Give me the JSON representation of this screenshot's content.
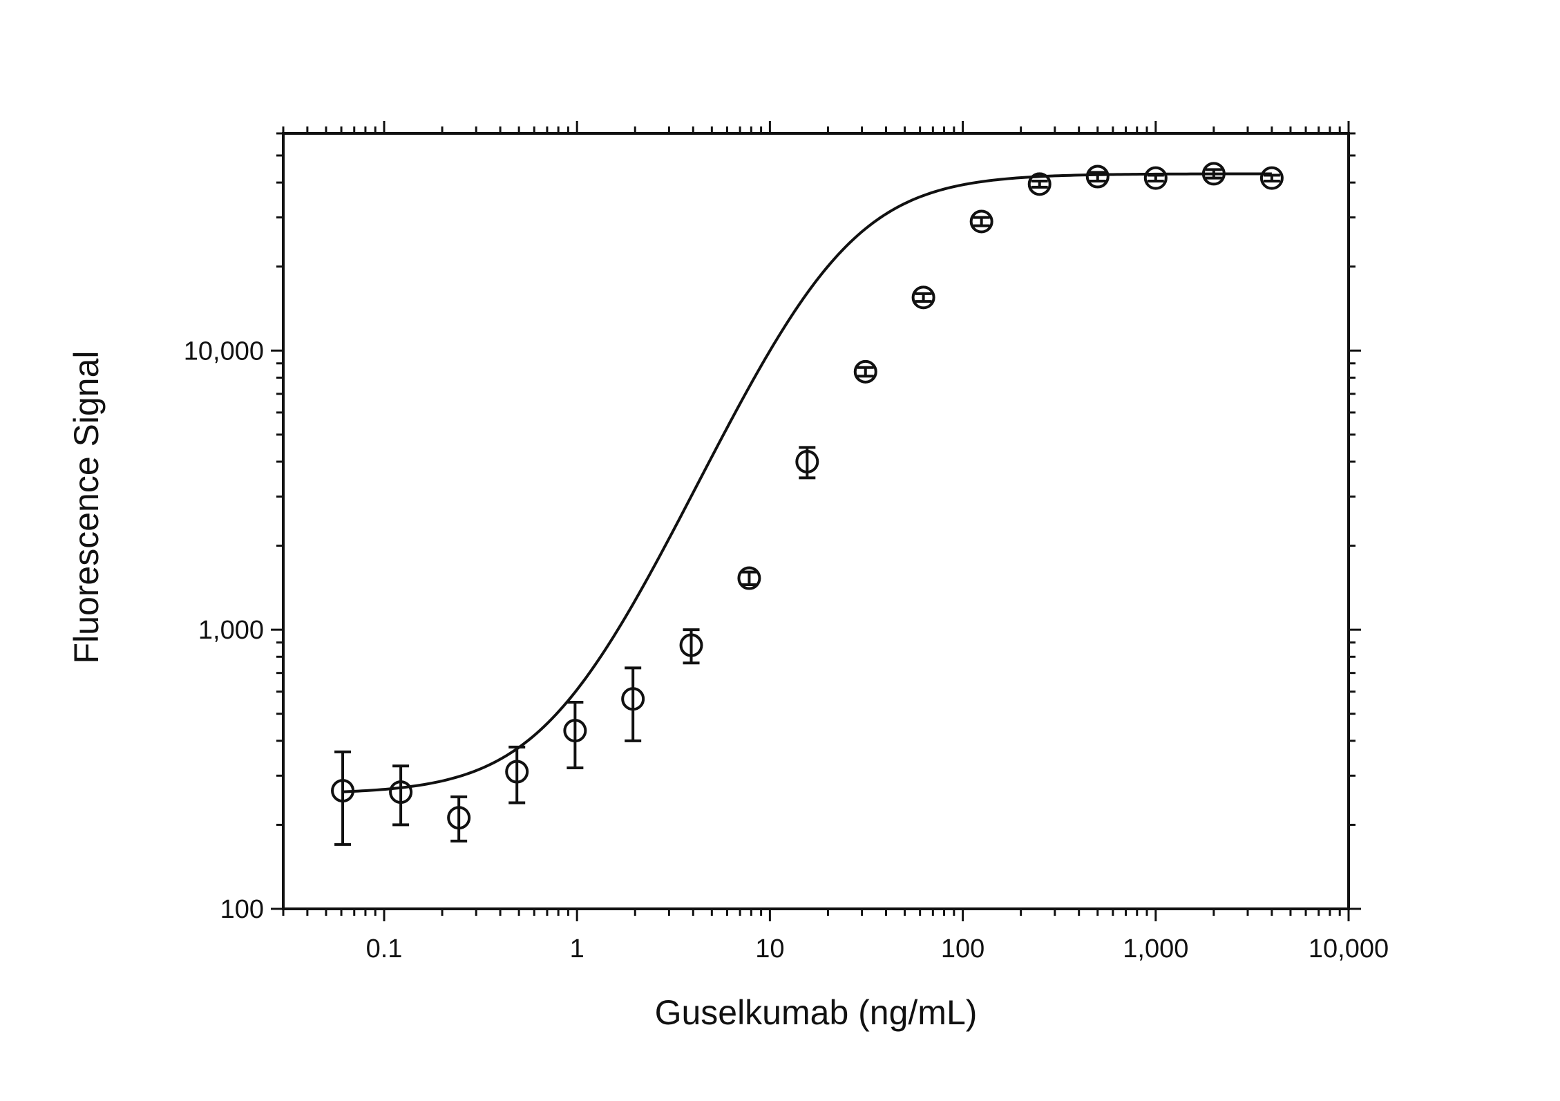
{
  "chart_data": {
    "type": "scatter",
    "title": "",
    "xlabel": "Guselkumab (ng/mL)",
    "ylabel": "Fluorescence Signal",
    "x_scale": "log",
    "y_scale": "log",
    "xlim": [
      0.03,
      10000
    ],
    "ylim": [
      100,
      60000
    ],
    "x_ticks": [
      {
        "value": 0.1,
        "label": "0.1"
      },
      {
        "value": 1,
        "label": "1"
      },
      {
        "value": 10,
        "label": "10"
      },
      {
        "value": 100,
        "label": "100"
      },
      {
        "value": 1000,
        "label": "1,000"
      },
      {
        "value": 10000,
        "label": "10,000"
      }
    ],
    "y_ticks": [
      {
        "value": 100,
        "label": "100"
      },
      {
        "value": 1000,
        "label": "1,000"
      },
      {
        "value": 10000,
        "label": "10,000"
      }
    ],
    "grid": false,
    "legend": "none",
    "color": "#111111",
    "marker": "open-circle",
    "points": [
      {
        "x": 0.061,
        "y": 265,
        "err_low": 170,
        "err_high": 365
      },
      {
        "x": 0.122,
        "y": 262,
        "err_low": 200,
        "err_high": 325
      },
      {
        "x": 0.244,
        "y": 212,
        "err_low": 175,
        "err_high": 252
      },
      {
        "x": 0.488,
        "y": 310,
        "err_low": 240,
        "err_high": 380
      },
      {
        "x": 0.977,
        "y": 435,
        "err_low": 320,
        "err_high": 550
      },
      {
        "x": 1.95,
        "y": 565,
        "err_low": 400,
        "err_high": 730
      },
      {
        "x": 3.91,
        "y": 880,
        "err_low": 760,
        "err_high": 1000
      },
      {
        "x": 7.81,
        "y": 1530,
        "err_low": 1450,
        "err_high": 1610
      },
      {
        "x": 15.6,
        "y": 4000,
        "err_low": 3500,
        "err_high": 4500
      },
      {
        "x": 31.3,
        "y": 8400,
        "err_low": 8100,
        "err_high": 8700
      },
      {
        "x": 62.5,
        "y": 15500,
        "err_low": 15000,
        "err_high": 16000
      },
      {
        "x": 125,
        "y": 29000,
        "err_low": 28000,
        "err_high": 30000
      },
      {
        "x": 250,
        "y": 39500,
        "err_low": 38500,
        "err_high": 40500
      },
      {
        "x": 500,
        "y": 42000,
        "err_low": 40500,
        "err_high": 43500
      },
      {
        "x": 1000,
        "y": 41500,
        "err_low": 40500,
        "err_high": 42500
      },
      {
        "x": 2000,
        "y": 43000,
        "err_low": 41500,
        "err_high": 44500
      },
      {
        "x": 4000,
        "y": 41500,
        "err_low": 40500,
        "err_high": 42500
      }
    ],
    "fit": {
      "model": "4PL",
      "bottom": 258,
      "top": 43000,
      "ec50": 22,
      "hill": 1.55,
      "x_range": [
        0.061,
        4000
      ]
    }
  }
}
